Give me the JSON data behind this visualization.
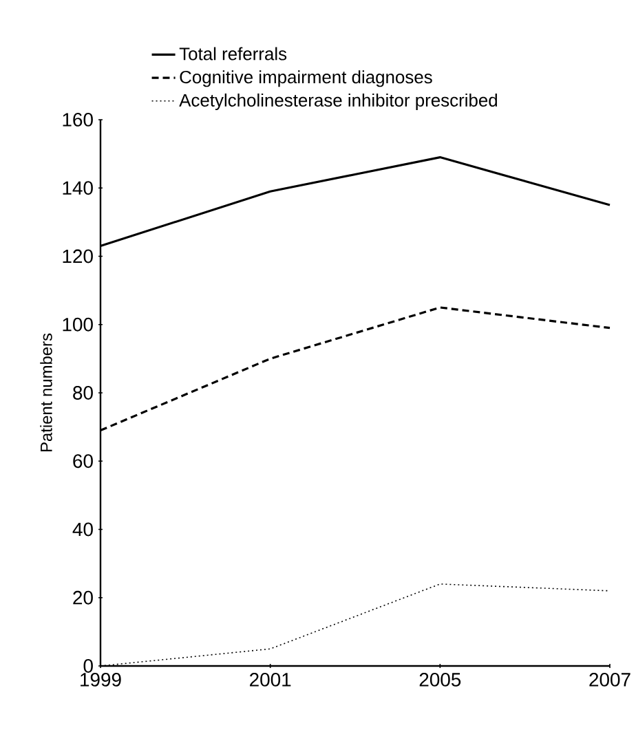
{
  "chart_data": {
    "type": "line",
    "ylabel": "Patient numbers",
    "categories": [
      "1999",
      "2001",
      "2005",
      "2007"
    ],
    "series": [
      {
        "name": "Total referrals",
        "color": "#000000",
        "line_style": "solid",
        "values": [
          123,
          139,
          149,
          135
        ]
      },
      {
        "name": "Cognitive impairment diagnoses",
        "color": "#000000",
        "line_style": "dashed",
        "values": [
          69,
          90,
          105,
          99
        ]
      },
      {
        "name": "Acetylcholinesterase inhibitor prescribed",
        "color": "#000000",
        "line_style": "dotted",
        "values": [
          0,
          5,
          24,
          22
        ]
      }
    ],
    "ylim": [
      0,
      160
    ],
    "yticks": [
      0,
      20,
      40,
      60,
      80,
      100,
      120,
      140,
      160
    ],
    "legend": "top",
    "marker": "none",
    "grid": false
  }
}
